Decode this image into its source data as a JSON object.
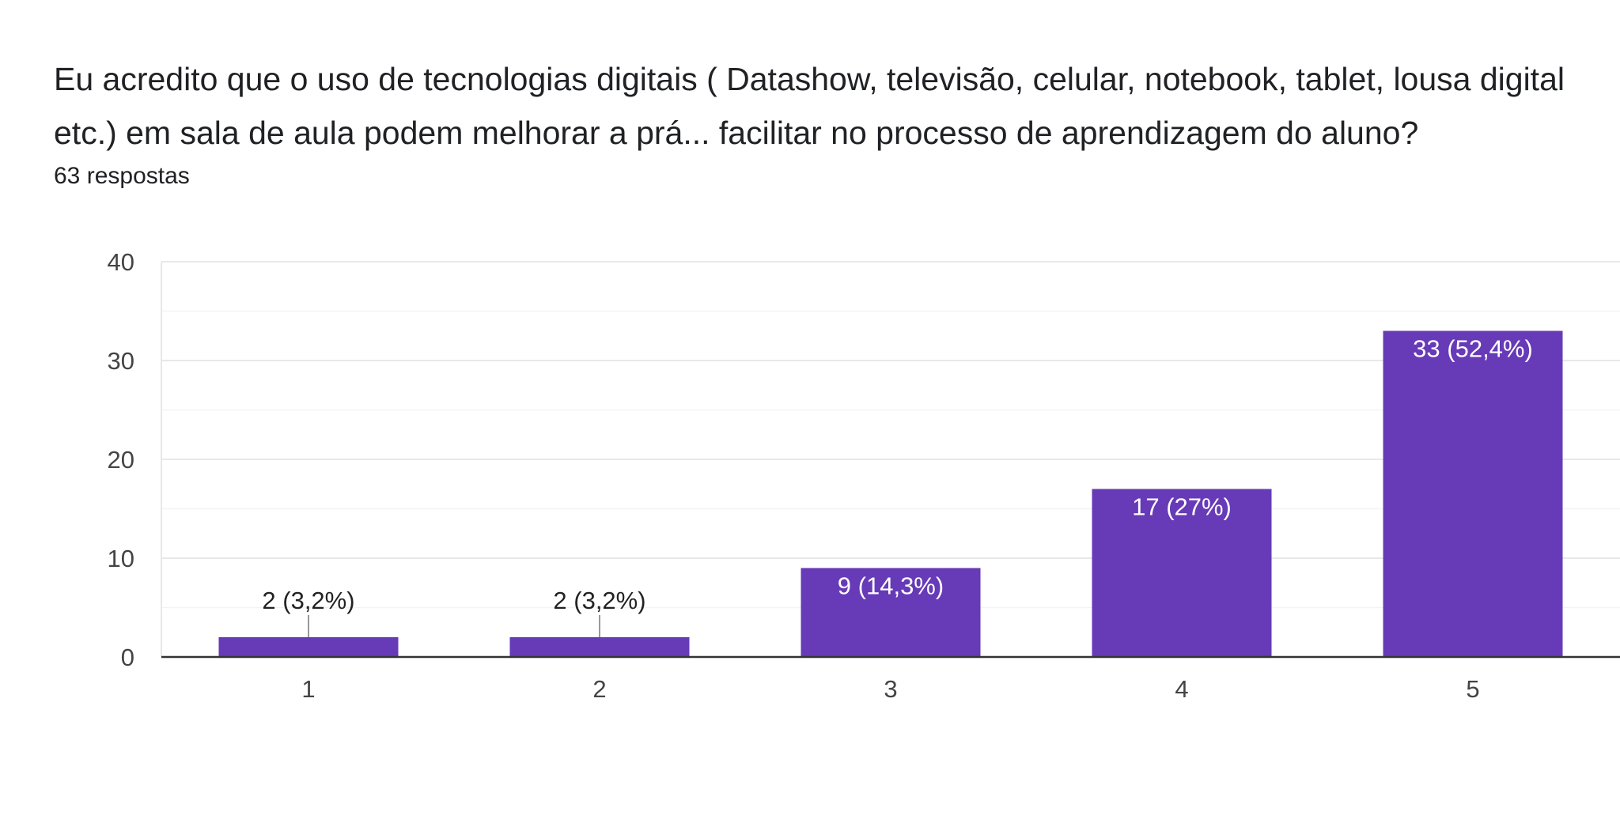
{
  "question": {
    "title": "Eu acredito que o uso de tecnologias digitais ( Datashow, televisão, celular, notebook, tablet, lousa digital etc.) em sala de aula podem melhorar a prá... facilitar no processo de aprendizagem do aluno?",
    "responses": "63 respostas"
  },
  "colors": {
    "bar": "#673ab7",
    "grid": "#e8e8e8",
    "axis": "#333333",
    "label_inside": "#ffffff",
    "label_outside": "#222222"
  },
  "chart_data": {
    "type": "bar",
    "categories": [
      "1",
      "2",
      "3",
      "4",
      "5"
    ],
    "values": [
      2,
      2,
      9,
      17,
      33
    ],
    "data_labels": [
      "2 (3,2%)",
      "2 (3,2%)",
      "9 (14,3%)",
      "17 (27%)",
      "33 (52,4%)"
    ],
    "y_ticks": [
      0,
      10,
      20,
      30,
      40
    ],
    "ylim": [
      0,
      40
    ],
    "grid": true,
    "legend": "none"
  }
}
